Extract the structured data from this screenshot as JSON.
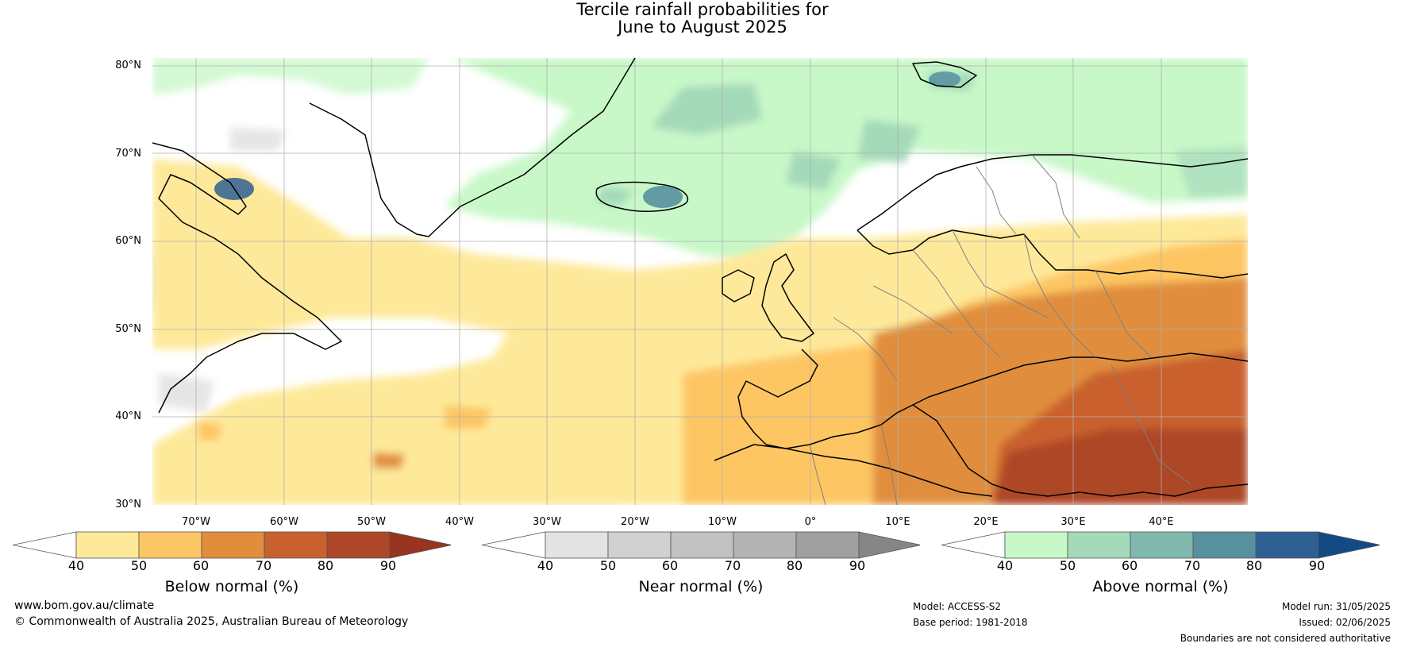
{
  "title_line1": "Tercile rainfall probabilities for",
  "title_line2": "June to August 2025",
  "lat_labels": [
    "80°N",
    "70°N",
    "60°N",
    "50°N",
    "40°N",
    "30°N"
  ],
  "lon_labels": [
    "70°W",
    "60°W",
    "50°W",
    "40°W",
    "30°W",
    "20°W",
    "10°W",
    "0°",
    "10°E",
    "20°E",
    "30°E",
    "40°E"
  ],
  "colorbars": [
    {
      "label": "Below normal (%)",
      "ticks": [
        "40",
        "50",
        "60",
        "70",
        "80",
        "90"
      ],
      "colors": [
        "#ffffff",
        "#fee99a",
        "#fdc664",
        "#e08e3c",
        "#c9612e",
        "#ad4727",
        "#983420"
      ]
    },
    {
      "label": "Near normal (%)",
      "ticks": [
        "40",
        "50",
        "60",
        "70",
        "80",
        "90"
      ],
      "colors": [
        "#ffffff",
        "#e3e3e3",
        "#d1d1d1",
        "#c2c2c2",
        "#b3b3b3",
        "#a0a0a0",
        "#868686"
      ]
    },
    {
      "label": "Above normal (%)",
      "ticks": [
        "40",
        "50",
        "60",
        "70",
        "80",
        "90"
      ],
      "colors": [
        "#ffffff",
        "#c8f8c8",
        "#a4d9b9",
        "#80b8ad",
        "#5890a0",
        "#2f6093",
        "#124b83"
      ]
    }
  ],
  "footer": {
    "website": "www.bom.gov.au/climate",
    "copyright": "© Commonwealth of Australia 2025, Australian Bureau of Meteorology",
    "model": "Model: ACCESS-S2",
    "base_period": "Base period: 1981-2018",
    "model_run": "Model run: 31/05/2025",
    "issued": "Issued: 02/06/2025",
    "disclaimer": "Boundaries are not considered authoritative"
  }
}
